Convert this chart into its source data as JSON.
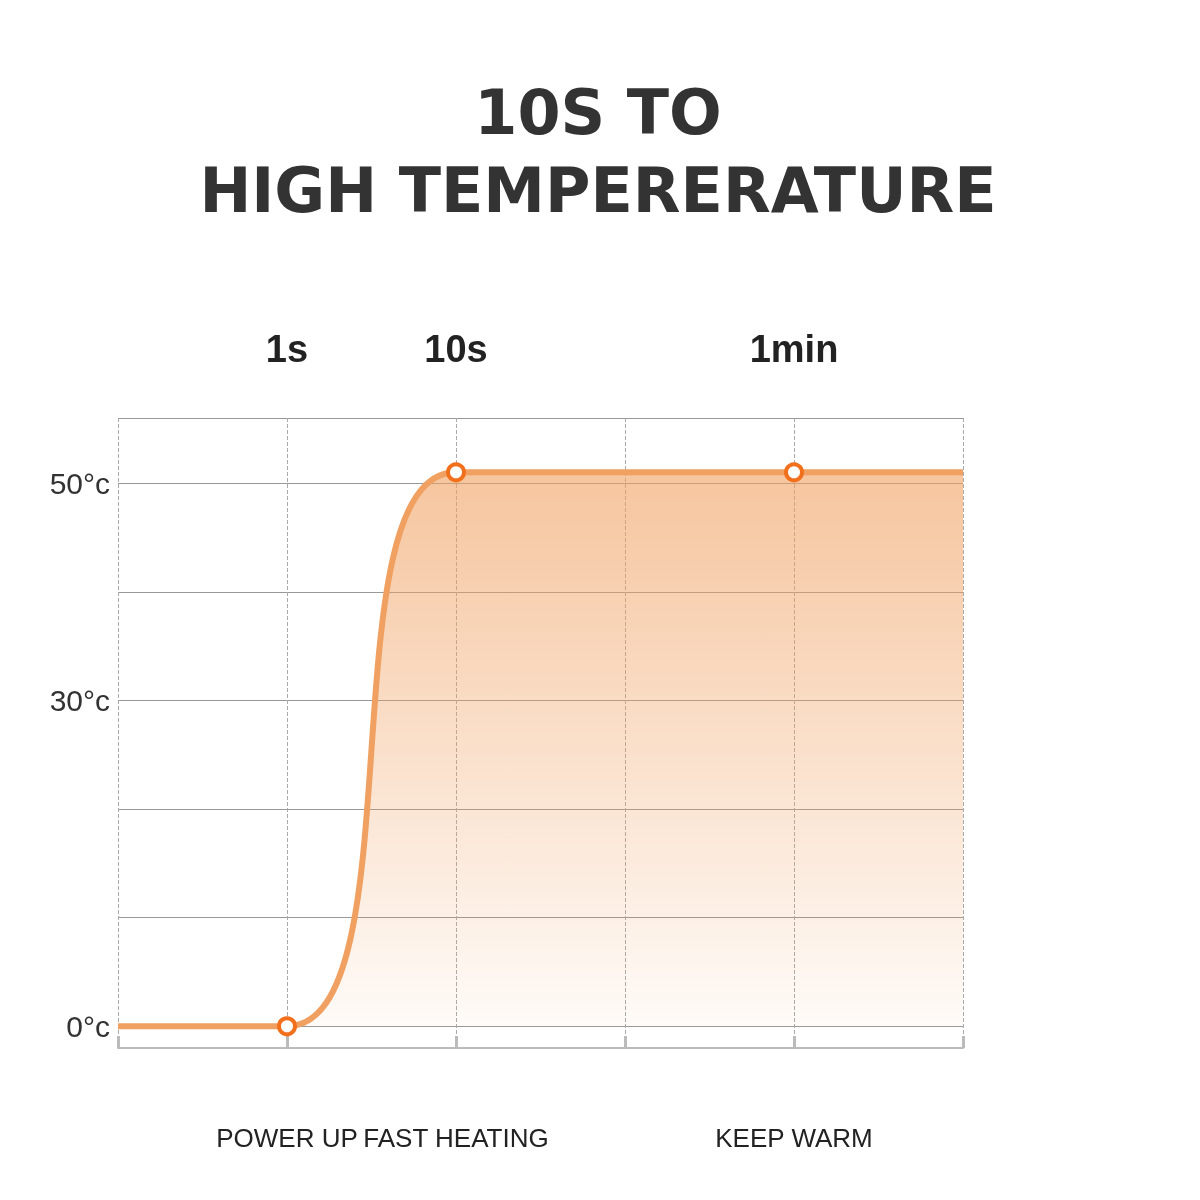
{
  "chart_data": {
    "type": "area",
    "title": "10S TO\nHIGH TEMPERERATURE",
    "categories": [
      null,
      "1s",
      "10s",
      null,
      "1min",
      null
    ],
    "series": [
      {
        "color": "#f0a060",
        "values": [
          0,
          0,
          51,
          51,
          51,
          51
        ]
      }
    ],
    "ylim": [
      -2,
      56
    ],
    "yticks": [
      {
        "value": 0,
        "label": "0°c"
      },
      {
        "value": 30,
        "label": "30°c"
      },
      {
        "value": 50,
        "label": "50°c"
      }
    ],
    "grid": true,
    "marker": "circle",
    "annotations": [
      "POWER UP",
      "FAST HEATING",
      "KEEP WARM"
    ]
  }
}
